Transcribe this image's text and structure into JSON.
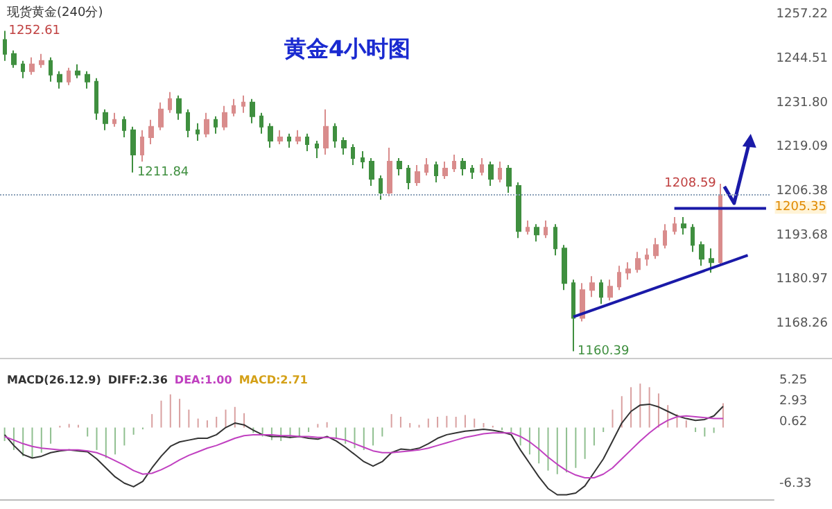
{
  "chart_data": [
    {
      "type": "candlestick",
      "title": "黄金4小时图",
      "subtitle": "现货黄金(240分)",
      "categories": [
        null,
        null,
        null,
        null,
        null,
        null,
        null,
        null,
        null,
        null,
        null,
        null,
        null,
        null,
        null,
        null,
        null,
        null,
        null,
        null,
        null,
        null,
        null,
        null,
        null,
        null,
        null,
        null,
        null,
        null,
        null,
        null,
        null,
        null,
        null,
        null,
        null,
        null,
        null,
        null,
        null,
        null,
        null,
        null,
        null,
        null,
        null,
        null,
        null,
        null,
        null,
        null,
        null,
        null,
        null,
        null,
        null,
        null,
        null,
        null,
        null,
        null,
        null,
        null,
        null,
        null,
        null,
        null,
        null,
        null,
        null,
        null,
        null,
        null,
        null,
        null,
        null,
        null,
        null,
        null,
        null,
        null,
        null,
        null
      ],
      "ohlc": [
        [
          1250,
          1252.61,
          1244,
          1246
        ],
        [
          1246,
          1247,
          1242,
          1243
        ],
        [
          1243,
          1244,
          1239,
          1241
        ],
        [
          1241,
          1245,
          1240,
          1243
        ],
        [
          1243,
          1246,
          1242,
          1244
        ],
        [
          1244,
          1245,
          1238,
          1240
        ],
        [
          1240,
          1241,
          1236,
          1238
        ],
        [
          1238,
          1242,
          1237,
          1241
        ],
        [
          1241,
          1243,
          1239,
          1240
        ],
        [
          1240,
          1241,
          1236,
          1238
        ],
        [
          1238,
          1239,
          1227,
          1229
        ],
        [
          1229,
          1230,
          1224,
          1226
        ],
        [
          1226,
          1229,
          1225,
          1227
        ],
        [
          1227,
          1228,
          1222,
          1224
        ],
        [
          1224,
          1225,
          1211.84,
          1217
        ],
        [
          1217,
          1224,
          1215,
          1222
        ],
        [
          1222,
          1227,
          1220,
          1225
        ],
        [
          1225,
          1232,
          1224,
          1230
        ],
        [
          1230,
          1235,
          1229,
          1233
        ],
        [
          1233,
          1234,
          1227,
          1229
        ],
        [
          1229,
          1230,
          1222,
          1224
        ],
        [
          1224,
          1226,
          1221,
          1223
        ],
        [
          1223,
          1229,
          1222,
          1227
        ],
        [
          1227,
          1228,
          1223,
          1225
        ],
        [
          1225,
          1231,
          1224,
          1229
        ],
        [
          1229,
          1233,
          1228,
          1231
        ],
        [
          1231,
          1234,
          1229,
          1232
        ],
        [
          1232,
          1233,
          1226,
          1228
        ],
        [
          1228,
          1229,
          1223,
          1225
        ],
        [
          1225,
          1226,
          1219,
          1221
        ],
        [
          1221,
          1224,
          1220,
          1222
        ],
        [
          1222,
          1223,
          1219,
          1221
        ],
        [
          1221,
          1224,
          1220,
          1222
        ],
        [
          1222,
          1223,
          1218,
          1220
        ],
        [
          1220,
          1221,
          1216,
          1219
        ],
        [
          1219,
          1230,
          1217,
          1225
        ],
        [
          1225,
          1226,
          1219,
          1221
        ],
        [
          1221,
          1222,
          1217,
          1219
        ],
        [
          1219,
          1220,
          1214,
          1216
        ],
        [
          1216,
          1218,
          1213,
          1215
        ],
        [
          1215,
          1216,
          1208,
          1210
        ],
        [
          1210,
          1211,
          1204,
          1206
        ],
        [
          1206,
          1219,
          1205,
          1215
        ],
        [
          1215,
          1216,
          1211,
          1213
        ],
        [
          1213,
          1214,
          1207,
          1209
        ],
        [
          1209,
          1214,
          1208,
          1212
        ],
        [
          1212,
          1216,
          1211,
          1214
        ],
        [
          1214,
          1215,
          1209,
          1211
        ],
        [
          1211,
          1215,
          1210,
          1213
        ],
        [
          1213,
          1217,
          1212,
          1215
        ],
        [
          1215,
          1216,
          1211,
          1213
        ],
        [
          1213,
          1214,
          1210,
          1212
        ],
        [
          1212,
          1216,
          1211,
          1214
        ],
        [
          1214,
          1215,
          1208,
          1210
        ],
        [
          1210,
          1215,
          1209,
          1213
        ],
        [
          1213,
          1214,
          1206,
          1208
        ],
        [
          1208,
          1209,
          1193,
          1195
        ],
        [
          1195,
          1198,
          1194,
          1196
        ],
        [
          1196,
          1197,
          1192,
          1194
        ],
        [
          1194,
          1198,
          1193,
          1196
        ],
        [
          1196,
          1197,
          1188,
          1190
        ],
        [
          1190,
          1191,
          1178,
          1180
        ],
        [
          1180,
          1181,
          1160.39,
          1170
        ],
        [
          1170,
          1180,
          1169,
          1178
        ],
        [
          1178,
          1182,
          1176,
          1180
        ],
        [
          1180,
          1181,
          1174,
          1176
        ],
        [
          1176,
          1181,
          1175,
          1179
        ],
        [
          1179,
          1185,
          1178,
          1183
        ],
        [
          1183,
          1186,
          1181,
          1184
        ],
        [
          1184,
          1189,
          1183,
          1187
        ],
        [
          1187,
          1190,
          1185,
          1188
        ],
        [
          1188,
          1193,
          1187,
          1191
        ],
        [
          1191,
          1197,
          1190,
          1195
        ],
        [
          1195,
          1199,
          1194,
          1197
        ],
        [
          1197,
          1199,
          1194,
          1196
        ],
        [
          1196,
          1197,
          1189,
          1191
        ],
        [
          1191,
          1192,
          1185,
          1187
        ],
        [
          1187,
          1190,
          1183,
          1186
        ],
        [
          1186,
          1208.59,
          1185,
          1205.35
        ],
        null,
        null,
        null,
        null,
        null
      ],
      "colors": [
        "#3f8f3f",
        "#3f8f3f",
        "#3f8f3f",
        "#d98c8c",
        "#d98c8c",
        "#3f8f3f",
        "#3f8f3f",
        "#d98c8c",
        "#3f8f3f",
        "#3f8f3f",
        "#3f8f3f",
        "#3f8f3f",
        "#d98c8c",
        "#3f8f3f",
        "#3f8f3f",
        "#d98c8c",
        "#d98c8c",
        "#d98c8c",
        "#d98c8c",
        "#3f8f3f",
        "#3f8f3f",
        "#3f8f3f",
        "#d98c8c",
        "#3f8f3f",
        "#d98c8c",
        "#d98c8c",
        "#d98c8c",
        "#3f8f3f",
        "#3f8f3f",
        "#3f8f3f",
        "#d98c8c",
        "#3f8f3f",
        "#d98c8c",
        "#3f8f3f",
        "#3f8f3f",
        "#d98c8c",
        "#3f8f3f",
        "#3f8f3f",
        "#3f8f3f",
        "#3f8f3f",
        "#3f8f3f",
        "#3f8f3f",
        "#d98c8c",
        "#3f8f3f",
        "#3f8f3f",
        "#d98c8c",
        "#d98c8c",
        "#3f8f3f",
        "#d98c8c",
        "#d98c8c",
        "#3f8f3f",
        "#3f8f3f",
        "#d98c8c",
        "#3f8f3f",
        "#d98c8c",
        "#3f8f3f",
        "#3f8f3f",
        "#d98c8c",
        "#3f8f3f",
        "#d98c8c",
        "#3f8f3f",
        "#3f8f3f",
        "#3f8f3f",
        "#d98c8c",
        "#d98c8c",
        "#3f8f3f",
        "#d98c8c",
        "#d98c8c",
        "#d98c8c",
        "#d98c8c",
        "#d98c8c",
        "#d98c8c",
        "#d98c8c",
        "#d98c8c",
        "#3f8f3f",
        "#3f8f3f",
        "#3f8f3f",
        "#3f8f3f",
        "#d98c8c",
        null,
        null,
        null,
        null,
        null
      ],
      "ylim": [
        1158.5,
        1261.5
      ],
      "yticks": [
        1168.26,
        1180.97,
        1193.68,
        1206.38,
        1219.09,
        {
          "value": 1231.8,
          "label": "1231.80"
        },
        1244.51,
        1257.22
      ],
      "tick_labels": "y",
      "ref_lines": [
        {
          "axis": "y",
          "value": 1205.35,
          "label": "1205.35",
          "color": "#8aa0b8",
          "line_style": "dotted"
        }
      ],
      "annotations": [
        "1252.61",
        "1211.84",
        "1160.39",
        "1208.59"
      ],
      "series": [
        {
          "type": "line",
          "color": "#1a1aa8",
          "values": [
            null,
            null,
            null,
            null,
            null,
            null,
            null,
            null,
            null,
            null,
            null,
            null,
            null,
            null,
            null,
            null,
            null,
            null,
            null,
            null,
            null,
            null,
            null,
            null,
            null,
            null,
            null,
            null,
            null,
            null,
            null,
            null,
            null,
            null,
            null,
            null,
            null,
            null,
            null,
            null,
            null,
            null,
            null,
            null,
            null,
            null,
            null,
            null,
            null,
            null,
            null,
            null,
            null,
            null,
            null,
            null,
            null,
            null,
            null,
            null,
            null,
            null,
            1170.3,
            null,
            null,
            null,
            null,
            null,
            null,
            null,
            null,
            null,
            null,
            null,
            null,
            null,
            null,
            null,
            null,
            null,
            null,
            1188,
            null,
            null
          ]
        },
        {
          "type": "line",
          "color": "#1a1aa8",
          "values": [
            null,
            null,
            null,
            null,
            null,
            null,
            null,
            null,
            null,
            null,
            null,
            null,
            null,
            null,
            null,
            null,
            null,
            null,
            null,
            null,
            null,
            null,
            null,
            null,
            null,
            null,
            null,
            null,
            null,
            null,
            null,
            null,
            null,
            null,
            null,
            null,
            null,
            null,
            null,
            null,
            null,
            null,
            null,
            null,
            null,
            null,
            null,
            null,
            null,
            null,
            null,
            null,
            null,
            null,
            null,
            null,
            null,
            null,
            null,
            null,
            null,
            null,
            null,
            null,
            null,
            null,
            null,
            null,
            null,
            null,
            null,
            null,
            null,
            1201.5,
            null,
            null,
            null,
            null,
            null,
            null,
            null,
            null,
            null,
            1201.5
          ]
        }
      ]
    },
    {
      "type": "bar",
      "title": "MACD(26.12.9)",
      "annotations": [
        "DIFF:2.36",
        "DEA:1.00",
        "MACD:2.71"
      ],
      "categories": [
        null,
        null,
        null,
        null,
        null,
        null,
        null,
        null,
        null,
        null,
        null,
        null,
        null,
        null,
        null,
        null,
        null,
        null,
        null,
        null,
        null,
        null,
        null,
        null,
        null,
        null,
        null,
        null,
        null,
        null,
        null,
        null,
        null,
        null,
        null,
        null,
        null,
        null,
        null,
        null,
        null,
        null,
        null,
        null,
        null,
        null,
        null,
        null,
        null,
        null,
        null,
        null,
        null,
        null,
        null,
        null,
        null,
        null,
        null,
        null,
        null,
        null,
        null,
        null,
        null,
        null,
        null,
        null,
        null,
        null,
        null,
        null,
        null,
        null,
        null,
        null,
        null,
        null,
        null,
        null,
        null,
        null,
        null,
        null
      ],
      "ylim": [
        -8,
        7
      ],
      "yticks": [
        -6.33,
        0.62,
        2.93,
        5.25
      ],
      "tick_labels": "y",
      "series": [
        {
          "type": "line",
          "color": "#333333",
          "values": [
            -0.8,
            -2.0,
            -3.0,
            -3.4,
            -3.2,
            -2.8,
            -2.6,
            -2.5,
            -2.6,
            -2.7,
            -3.5,
            -4.5,
            -5.5,
            -6.2,
            -6.6,
            -6.0,
            -4.5,
            -3.2,
            -2.1,
            -1.6,
            -1.4,
            -1.2,
            -1.2,
            -0.8,
            0.0,
            0.5,
            0.3,
            -0.3,
            -0.8,
            -1.0,
            -1.0,
            -1.1,
            -1.0,
            -1.2,
            -1.3,
            -1.0,
            -1.5,
            -2.2,
            -3.0,
            -3.8,
            -4.3,
            -3.8,
            -2.8,
            -2.4,
            -2.5,
            -2.3,
            -1.8,
            -1.2,
            -0.8,
            -0.6,
            -0.4,
            -0.3,
            -0.2,
            -0.3,
            -0.5,
            -0.8,
            -2.5,
            -4.0,
            -5.5,
            -6.8,
            -7.5,
            -7.5,
            -7.3,
            -6.5,
            -5.0,
            -3.5,
            -1.5,
            0.5,
            1.8,
            2.5,
            2.6,
            2.3,
            1.8,
            1.3,
            1.0,
            0.8,
            0.9,
            1.3,
            2.36,
            null,
            null,
            null,
            null,
            null
          ]
        },
        {
          "type": "line",
          "color": "#c040c0",
          "values": [
            -1.0,
            -1.4,
            -1.8,
            -2.1,
            -2.3,
            -2.4,
            -2.5,
            -2.5,
            -2.5,
            -2.6,
            -2.8,
            -3.2,
            -3.7,
            -4.2,
            -4.8,
            -5.2,
            -5.1,
            -4.7,
            -4.2,
            -3.6,
            -3.1,
            -2.7,
            -2.3,
            -2.0,
            -1.6,
            -1.2,
            -0.9,
            -0.8,
            -0.8,
            -0.8,
            -0.9,
            -0.9,
            -1.0,
            -1.0,
            -1.1,
            -1.1,
            -1.2,
            -1.4,
            -1.8,
            -2.2,
            -2.6,
            -2.8,
            -2.8,
            -2.7,
            -2.6,
            -2.5,
            -2.3,
            -2.0,
            -1.7,
            -1.4,
            -1.1,
            -0.9,
            -0.7,
            -0.6,
            -0.6,
            -0.6,
            -1.0,
            -1.6,
            -2.4,
            -3.3,
            -4.1,
            -4.8,
            -5.3,
            -5.6,
            -5.6,
            -5.2,
            -4.5,
            -3.5,
            -2.5,
            -1.5,
            -0.6,
            0.2,
            0.8,
            1.2,
            1.3,
            1.2,
            1.1,
            1.0,
            1.0,
            null,
            null,
            null,
            null,
            null
          ]
        },
        {
          "type": "bar",
          "colors": [
            "#8fbf8f",
            "#8fbf8f",
            "#8fbf8f",
            "#8fbf8f",
            "#8fbf8f",
            "#8fbf8f",
            "#d9a0a0",
            "#d9a0a0",
            "#d9a0a0",
            "#8fbf8f",
            "#8fbf8f",
            "#8fbf8f",
            "#8fbf8f",
            "#8fbf8f",
            "#8fbf8f",
            "#8fbf8f",
            "#d9a0a0",
            "#d9a0a0",
            "#d9a0a0",
            "#d9a0a0",
            "#d9a0a0",
            "#d9a0a0",
            "#d9a0a0",
            "#d9a0a0",
            "#d9a0a0",
            "#d9a0a0",
            "#d9a0a0",
            "#8fbf8f",
            "#8fbf8f",
            "#8fbf8f",
            "#8fbf8f",
            "#8fbf8f",
            "#8fbf8f",
            "#8fbf8f",
            "#d9a0a0",
            "#d9a0a0",
            "#8fbf8f",
            "#8fbf8f",
            "#8fbf8f",
            "#8fbf8f",
            "#8fbf8f",
            "#8fbf8f",
            "#d9a0a0",
            "#d9a0a0",
            "#d9a0a0",
            "#d9a0a0",
            "#d9a0a0",
            "#d9a0a0",
            "#d9a0a0",
            "#d9a0a0",
            "#d9a0a0",
            "#d9a0a0",
            "#d9a0a0",
            "#d9a0a0",
            "#8fbf8f",
            "#8fbf8f",
            "#8fbf8f",
            "#8fbf8f",
            "#8fbf8f",
            "#8fbf8f",
            "#8fbf8f",
            "#8fbf8f",
            "#8fbf8f",
            "#8fbf8f",
            "#8fbf8f",
            "#8fbf8f",
            "#d9a0a0",
            "#d9a0a0",
            "#d9a0a0",
            "#d9a0a0",
            "#d9a0a0",
            "#d9a0a0",
            "#d9a0a0",
            "#d9a0a0",
            "#d9a0a0",
            "#8fbf8f",
            "#8fbf8f",
            "#8fbf8f",
            "#d9a0a0",
            null,
            null,
            null,
            null,
            null
          ],
          "values": [
            -1.5,
            -2.5,
            -3.2,
            -3.4,
            -2.8,
            -1.8,
            0.2,
            0.4,
            0.3,
            -1.0,
            -2.5,
            -3.4,
            -3.0,
            -2.0,
            -0.8,
            -0.2,
            1.5,
            3.0,
            3.7,
            3.2,
            2.0,
            1.0,
            0.8,
            1.2,
            2.0,
            2.3,
            1.6,
            -0.6,
            -1.0,
            -1.4,
            -1.5,
            -1.2,
            -1.0,
            -0.5,
            0.4,
            0.6,
            -1.2,
            -1.8,
            -2.3,
            -2.5,
            -2.0,
            -1.0,
            1.5,
            1.2,
            0.5,
            0.3,
            1.0,
            1.2,
            1.3,
            1.2,
            1.4,
            1.0,
            0.5,
            0.2,
            -0.3,
            -0.5,
            -2.0,
            -3.0,
            -4.0,
            -4.8,
            -5.2,
            -5.0,
            -4.5,
            -3.5,
            -2.0,
            -0.5,
            2.0,
            3.5,
            4.5,
            4.9,
            4.5,
            3.8,
            2.5,
            1.5,
            0.8,
            -0.5,
            -1.0,
            -0.6,
            2.71,
            null,
            null,
            null,
            null,
            null
          ]
        }
      ]
    }
  ]
}
